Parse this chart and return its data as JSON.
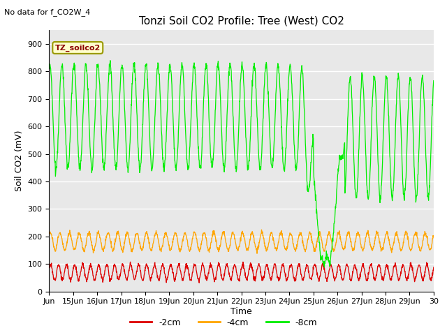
{
  "title": "Tonzi Soil CO2 Profile: Tree (West) CO2",
  "no_data_label": "No data for f_CO2W_4",
  "ylabel": "Soil CO2 (mV)",
  "xlabel": "Time",
  "legend_label": "TZ_soilco2",
  "series_labels": [
    "-2cm",
    "-4cm",
    "-8cm"
  ],
  "series_colors": [
    "#dd0000",
    "#ffa500",
    "#00ee00"
  ],
  "xtick_labels": [
    "Jun",
    "15Jun",
    "16Jun",
    "17Jun",
    "18Jun",
    "19Jun",
    "20Jun",
    "21Jun",
    "22Jun",
    "23Jun",
    "24Jun",
    "25Jun",
    "26Jun",
    "27Jun",
    "28Jun",
    "29Jun",
    "30"
  ],
  "ylim": [
    0,
    950
  ],
  "yticks": [
    0,
    100,
    200,
    300,
    400,
    500,
    600,
    700,
    800,
    900
  ],
  "background_color": "#ffffff",
  "plot_bg_color": "#e8e8e8",
  "grid_color": "#ffffff",
  "title_fontsize": 11,
  "axis_fontsize": 9,
  "tick_fontsize": 8,
  "legend_fontsize": 9
}
